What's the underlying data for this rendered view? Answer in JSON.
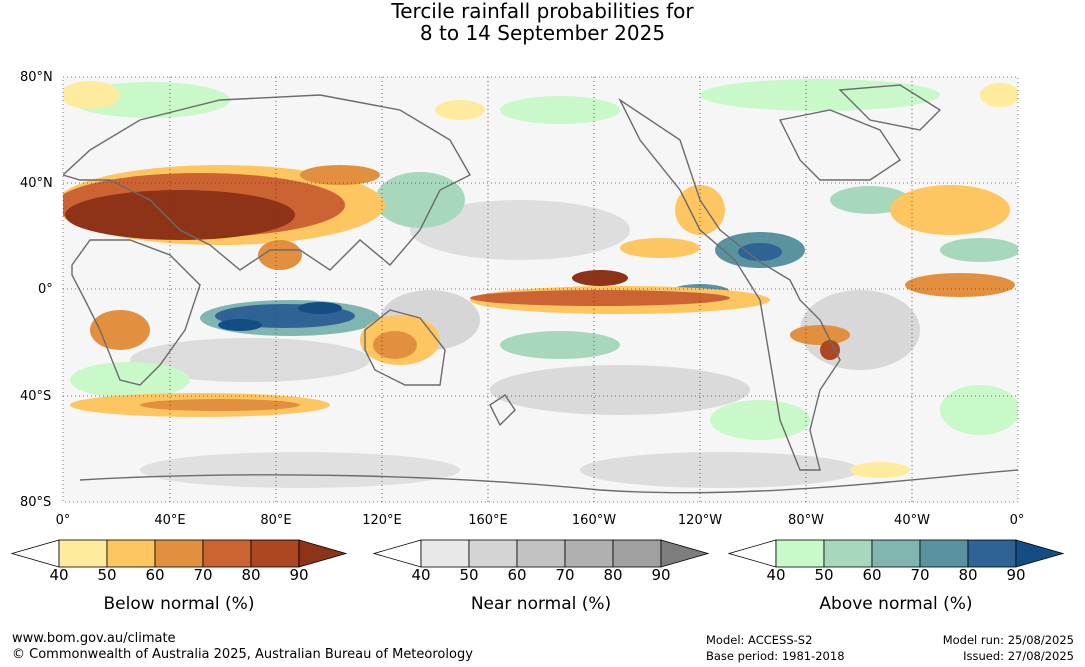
{
  "title": {
    "line1": "Tercile rainfall probabilities for",
    "line2": "8 to 14 September 2025"
  },
  "axes": {
    "lat_labels": [
      "80°N",
      "40°N",
      "0°",
      "40°S",
      "80°S"
    ],
    "lon_labels": [
      "0°",
      "40°E",
      "80°E",
      "120°E",
      "160°E",
      "160°W",
      "120°W",
      "80°W",
      "40°W",
      "0°"
    ]
  },
  "colorbars": [
    {
      "label": "Below normal (%)",
      "ticks": [
        "40",
        "50",
        "60",
        "70",
        "80",
        "90"
      ],
      "colors": [
        "#ffffff",
        "#feeb9d",
        "#fdc661",
        "#e2903f",
        "#cc6333",
        "#ad4722",
        "#8f3318"
      ]
    },
    {
      "label": "Near normal (%)",
      "ticks": [
        "40",
        "50",
        "60",
        "70",
        "80",
        "90"
      ],
      "colors": [
        "#ffffff",
        "#e8e8e8",
        "#d4d4d4",
        "#c2c2c2",
        "#b0b0b0",
        "#a0a0a0",
        "#7d7d7d"
      ]
    },
    {
      "label": "Above normal (%)",
      "ticks": [
        "40",
        "50",
        "60",
        "70",
        "80",
        "90"
      ],
      "colors": [
        "#ffffff",
        "#c9f9c8",
        "#a8d8bb",
        "#80b5b0",
        "#5b92a0",
        "#2f6396",
        "#144c84"
      ]
    }
  ],
  "footer": {
    "url": "www.bom.gov.au/climate",
    "copyright": "© Commonwealth of Australia 2025, Australian Bureau of Meteorology",
    "model": "Model: ACCESS-S2",
    "base_period": "Base period: 1981-2018",
    "model_run": "Model run: 25/08/2025",
    "issued": "Issued: 27/08/2025"
  }
}
